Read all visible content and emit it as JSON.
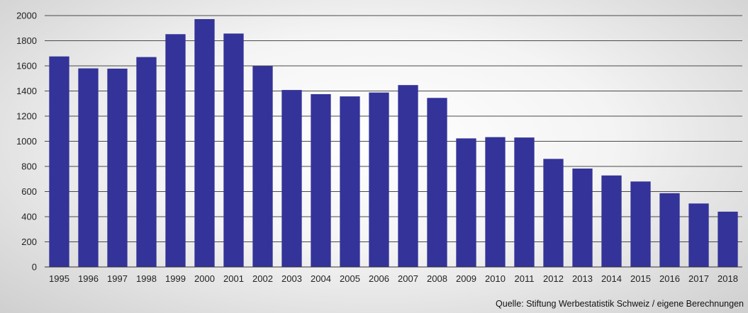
{
  "chart_data": {
    "type": "bar",
    "categories": [
      "1995",
      "1996",
      "1997",
      "1998",
      "1999",
      "2000",
      "2001",
      "2002",
      "2003",
      "2004",
      "2005",
      "2006",
      "2007",
      "2008",
      "2009",
      "2010",
      "2011",
      "2012",
      "2013",
      "2014",
      "2015",
      "2016",
      "2017",
      "2018"
    ],
    "values": [
      1675,
      1580,
      1578,
      1670,
      1852,
      1972,
      1857,
      1598,
      1408,
      1375,
      1357,
      1388,
      1447,
      1345,
      1023,
      1033,
      1030,
      860,
      783,
      728,
      680,
      587,
      505,
      440
    ],
    "ylim": [
      0,
      2000
    ],
    "yticks": [
      0,
      200,
      400,
      600,
      800,
      1000,
      1200,
      1400,
      1600,
      1800,
      2000
    ],
    "grid": true,
    "legend": "none",
    "title": "",
    "xlabel": "",
    "ylabel": "",
    "bar_color": "#333399",
    "source": "Quelle: Stiftung Werbestatistik Schweiz / eigene Berechnungen"
  }
}
